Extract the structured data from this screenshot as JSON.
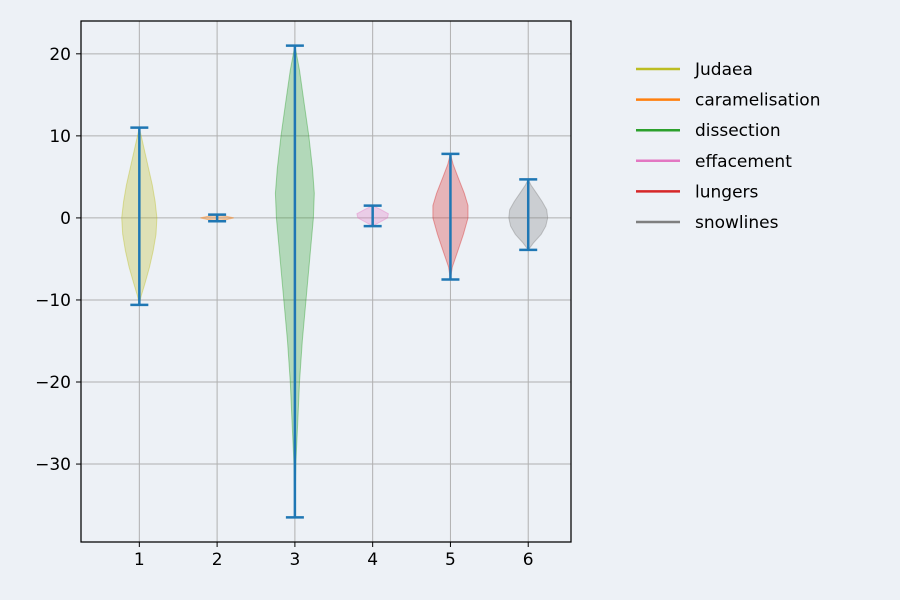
{
  "chart_data": {
    "type": "violin",
    "title": "",
    "xlabel": "",
    "ylabel": "",
    "ylim": [
      -39.5,
      24
    ],
    "xlim": [
      0.25,
      6.55
    ],
    "xticks": [
      1,
      2,
      3,
      4,
      5,
      6
    ],
    "yticks": [
      -30,
      -20,
      -10,
      0,
      10,
      20
    ],
    "ytick_labels": [
      "−30",
      "−20",
      "−10",
      "0",
      "10",
      "20"
    ],
    "grid": true,
    "legend_position": "right",
    "whisker_color": "#1f77b4",
    "series": [
      {
        "name": "Judaea",
        "position": 1,
        "color": "#bcbd22",
        "min": -10.6,
        "max": 11.0,
        "density": [
          [
            -10.6,
            0
          ],
          [
            -9.5,
            2
          ],
          [
            -8,
            6
          ],
          [
            -6,
            11
          ],
          [
            -4,
            15
          ],
          [
            -2,
            18
          ],
          [
            0,
            19
          ],
          [
            2,
            17
          ],
          [
            4,
            14
          ],
          [
            6,
            10
          ],
          [
            8,
            6
          ],
          [
            10,
            2
          ],
          [
            11.0,
            0
          ]
        ]
      },
      {
        "name": "caramelisation",
        "position": 2,
        "color": "#ff7f0e",
        "min": -0.4,
        "max": 0.4,
        "density": [
          [
            -0.4,
            0
          ],
          [
            -0.2,
            10
          ],
          [
            0,
            18
          ],
          [
            0.2,
            10
          ],
          [
            0.4,
            0
          ]
        ]
      },
      {
        "name": "dissection",
        "position": 3,
        "color": "#2ca02c",
        "min": -36.5,
        "max": 21.0,
        "density": [
          [
            -36.5,
            0
          ],
          [
            -30,
            1
          ],
          [
            -25,
            3
          ],
          [
            -20,
            5
          ],
          [
            -15,
            8
          ],
          [
            -10,
            12
          ],
          [
            -5,
            16
          ],
          [
            0,
            20
          ],
          [
            3,
            21
          ],
          [
            6,
            19
          ],
          [
            10,
            15
          ],
          [
            14,
            10
          ],
          [
            18,
            5
          ],
          [
            21.0,
            0
          ]
        ]
      },
      {
        "name": "effacement",
        "position": 4,
        "color": "#e377c2",
        "min": -1.0,
        "max": 1.5,
        "density": [
          [
            -1.0,
            0
          ],
          [
            -0.5,
            8
          ],
          [
            0,
            16
          ],
          [
            0.5,
            17
          ],
          [
            1.0,
            9
          ],
          [
            1.5,
            0
          ]
        ]
      },
      {
        "name": "lungers",
        "position": 5,
        "color": "#d62728",
        "min": -7.5,
        "max": 7.8,
        "density": [
          [
            -7.5,
            0
          ],
          [
            -6,
            2
          ],
          [
            -4,
            8
          ],
          [
            -2,
            14
          ],
          [
            0,
            19
          ],
          [
            1.5,
            19
          ],
          [
            3,
            15
          ],
          [
            5,
            8
          ],
          [
            6.5,
            3
          ],
          [
            7.8,
            0
          ]
        ]
      },
      {
        "name": "snowlines",
        "position": 6,
        "color": "#7f7f7f",
        "min": -3.9,
        "max": 4.7,
        "density": [
          [
            -3.9,
            0
          ],
          [
            -3,
            6
          ],
          [
            -2,
            14
          ],
          [
            -1,
            19
          ],
          [
            0,
            21
          ],
          [
            1,
            20
          ],
          [
            2,
            15
          ],
          [
            3,
            9
          ],
          [
            4,
            3
          ],
          [
            4.7,
            0
          ]
        ]
      }
    ]
  }
}
